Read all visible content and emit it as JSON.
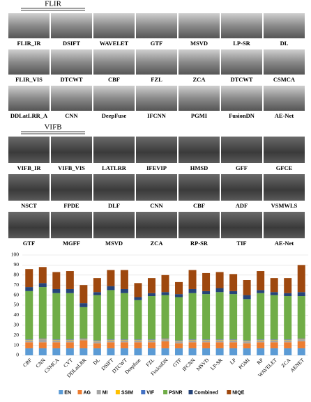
{
  "flir": {
    "title": "FLIR",
    "labels": [
      [
        "FLIR_IR",
        "DSIFT",
        "WAVELET",
        "GTF",
        "MSVD",
        "LP-SR",
        "DL"
      ],
      [
        "FLIR_VIS",
        "DTCWT",
        "CBF",
        "FZL",
        "ZCA",
        "DTCWT",
        "CSMCA"
      ],
      [
        "DDLatLRR_A",
        "CNN",
        "DeepFuse",
        "IFCNN",
        "PGMI",
        "FusionDN",
        "AE-Net"
      ]
    ]
  },
  "vifb": {
    "title": "VIFB",
    "labels": [
      [
        "VIFB_IR",
        "VIFB_VIS",
        "LATLRR",
        "IFEVIP",
        "HMSD",
        "GFF",
        "GFCE"
      ],
      [
        "NSCT",
        "FPDE",
        "DLF",
        "CNN",
        "CBF",
        "ADF",
        "VSMWLS"
      ],
      [
        "GTF",
        "MGFF",
        "MSVD",
        "ZCA",
        "RP-SR",
        "TIF",
        "AE-Net"
      ]
    ]
  },
  "chart_data": {
    "type": "stacked_bar",
    "categories": [
      "CBF",
      "CNN",
      "CSMCA",
      "CVT",
      "DDLatLRR",
      "DL",
      "DSIFT",
      "DTCWT",
      "Deepfuse",
      "FZL",
      "FusionDN",
      "GTF",
      "IFCNN",
      "MSVD",
      "LP-SR",
      "LP",
      "PGMI",
      "RP",
      "WAVELET",
      "ZCA",
      "AENET"
    ],
    "series": [
      {
        "name": "EN",
        "color": "#5b9bd5",
        "values": [
          7,
          7,
          7,
          7,
          7,
          7,
          7,
          7,
          7,
          7,
          7,
          7,
          7,
          7,
          7,
          7,
          7,
          7,
          7,
          7,
          7
        ]
      },
      {
        "name": "AG",
        "color": "#ed7d31",
        "values": [
          6,
          6,
          6,
          6,
          8,
          5,
          6,
          6,
          6,
          6,
          7,
          5,
          6,
          6,
          6,
          6,
          5,
          6,
          6,
          6,
          7
        ]
      },
      {
        "name": "MI",
        "color": "#a5a5a5",
        "values": [
          2,
          3,
          2,
          2,
          1,
          2,
          2,
          2,
          2,
          2,
          2,
          2,
          2,
          2,
          2,
          2,
          2,
          2,
          2,
          2,
          2
        ]
      },
      {
        "name": "SSIM",
        "color": "#ffc000",
        "values": [
          0.5,
          0.5,
          0.5,
          0.5,
          0.5,
          0.5,
          0.5,
          0.5,
          0.5,
          0.5,
          0.5,
          0.5,
          0.5,
          0.5,
          0.5,
          0.5,
          0.5,
          0.5,
          0.5,
          0.5,
          0.5
        ]
      },
      {
        "name": "VIF",
        "color": "#4472c4",
        "values": [
          0.5,
          0.5,
          0.5,
          0.5,
          0.5,
          0.5,
          0.5,
          0.5,
          0.5,
          0.5,
          0.5,
          0.5,
          0.5,
          0.5,
          0.5,
          0.5,
          0.5,
          0.5,
          0.5,
          0.5,
          0.5
        ]
      },
      {
        "name": "PSNR",
        "color": "#70ad47",
        "values": [
          48,
          51,
          46,
          46,
          31,
          45,
          49,
          46,
          39,
          43,
          43,
          43,
          46,
          45,
          47,
          45,
          41,
          46,
          44,
          43,
          42
        ]
      },
      {
        "name": "Combined",
        "color": "#264478",
        "values": [
          4,
          4,
          4,
          4,
          4,
          3,
          4,
          4,
          3,
          3,
          3,
          3,
          4,
          3,
          4,
          3,
          4,
          3,
          3,
          3,
          4
        ]
      },
      {
        "name": "NIQE",
        "color": "#9e480e",
        "values": [
          18,
          16,
          17,
          18,
          18,
          14,
          16,
          19,
          14,
          15,
          17,
          12,
          19,
          18,
          16,
          17,
          15,
          19,
          14,
          15,
          27
        ]
      }
    ],
    "ylim": [
      0,
      100
    ],
    "yticks": [
      0,
      10,
      20,
      30,
      40,
      50,
      60,
      70,
      80,
      90,
      100
    ],
    "grid": true,
    "legend": "bottom"
  }
}
